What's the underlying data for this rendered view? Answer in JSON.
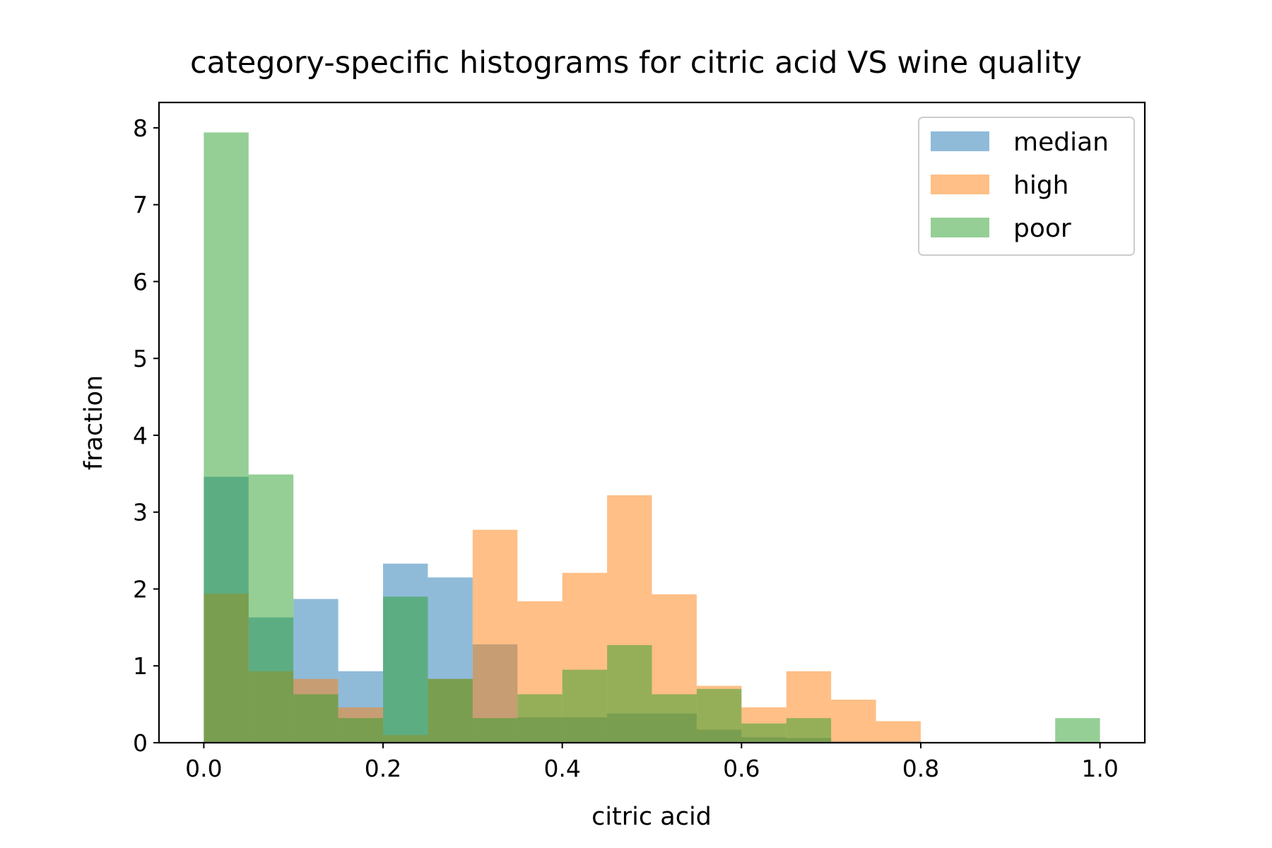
{
  "chart_data": {
    "type": "histogram",
    "title": "category-specific histograms for citric acid VS wine quality",
    "xlabel": "citric acid",
    "ylabel": "fraction",
    "xlim": [
      -0.05,
      1.05
    ],
    "ylim": [
      0,
      8.33
    ],
    "xticks": [
      0.0,
      0.2,
      0.4,
      0.6,
      0.8,
      1.0
    ],
    "xtick_labels": [
      "0.0",
      "0.2",
      "0.4",
      "0.6",
      "0.8",
      "1.0"
    ],
    "yticks": [
      0,
      1,
      2,
      3,
      4,
      5,
      6,
      7,
      8
    ],
    "ytick_labels": [
      "0",
      "1",
      "2",
      "3",
      "4",
      "5",
      "6",
      "7",
      "8"
    ],
    "bin_edges": [
      0.0,
      0.05,
      0.1,
      0.15,
      0.2,
      0.25,
      0.3,
      0.35,
      0.4,
      0.45,
      0.5,
      0.55,
      0.6,
      0.65,
      0.7,
      0.75,
      0.8,
      0.85,
      0.9,
      0.95,
      1.0
    ],
    "legend_position": "top-right",
    "series": [
      {
        "name": "median",
        "color": "#1f77b4",
        "alpha": 0.5,
        "values": [
          3.46,
          1.63,
          1.87,
          0.93,
          2.33,
          2.15,
          1.28,
          0.33,
          0.33,
          0.38,
          0.38,
          0.17,
          0.07,
          0.06,
          0.02,
          0.02,
          0.0,
          0.0,
          0.0,
          0.0
        ]
      },
      {
        "name": "high",
        "color": "#ff7f0e",
        "alpha": 0.5,
        "values": [
          1.94,
          0.93,
          0.83,
          0.46,
          0.1,
          0.83,
          2.77,
          1.84,
          2.21,
          3.22,
          1.93,
          0.74,
          0.46,
          0.93,
          0.56,
          0.28,
          0.0,
          0.0,
          0.0,
          0.0
        ]
      },
      {
        "name": "poor",
        "color": "#2ca02c",
        "alpha": 0.5,
        "values": [
          7.94,
          3.49,
          0.63,
          0.32,
          1.9,
          0.83,
          0.32,
          0.63,
          0.95,
          1.27,
          0.63,
          0.7,
          0.25,
          0.32,
          0.0,
          0.0,
          0.0,
          0.0,
          0.0,
          0.32
        ]
      }
    ]
  }
}
